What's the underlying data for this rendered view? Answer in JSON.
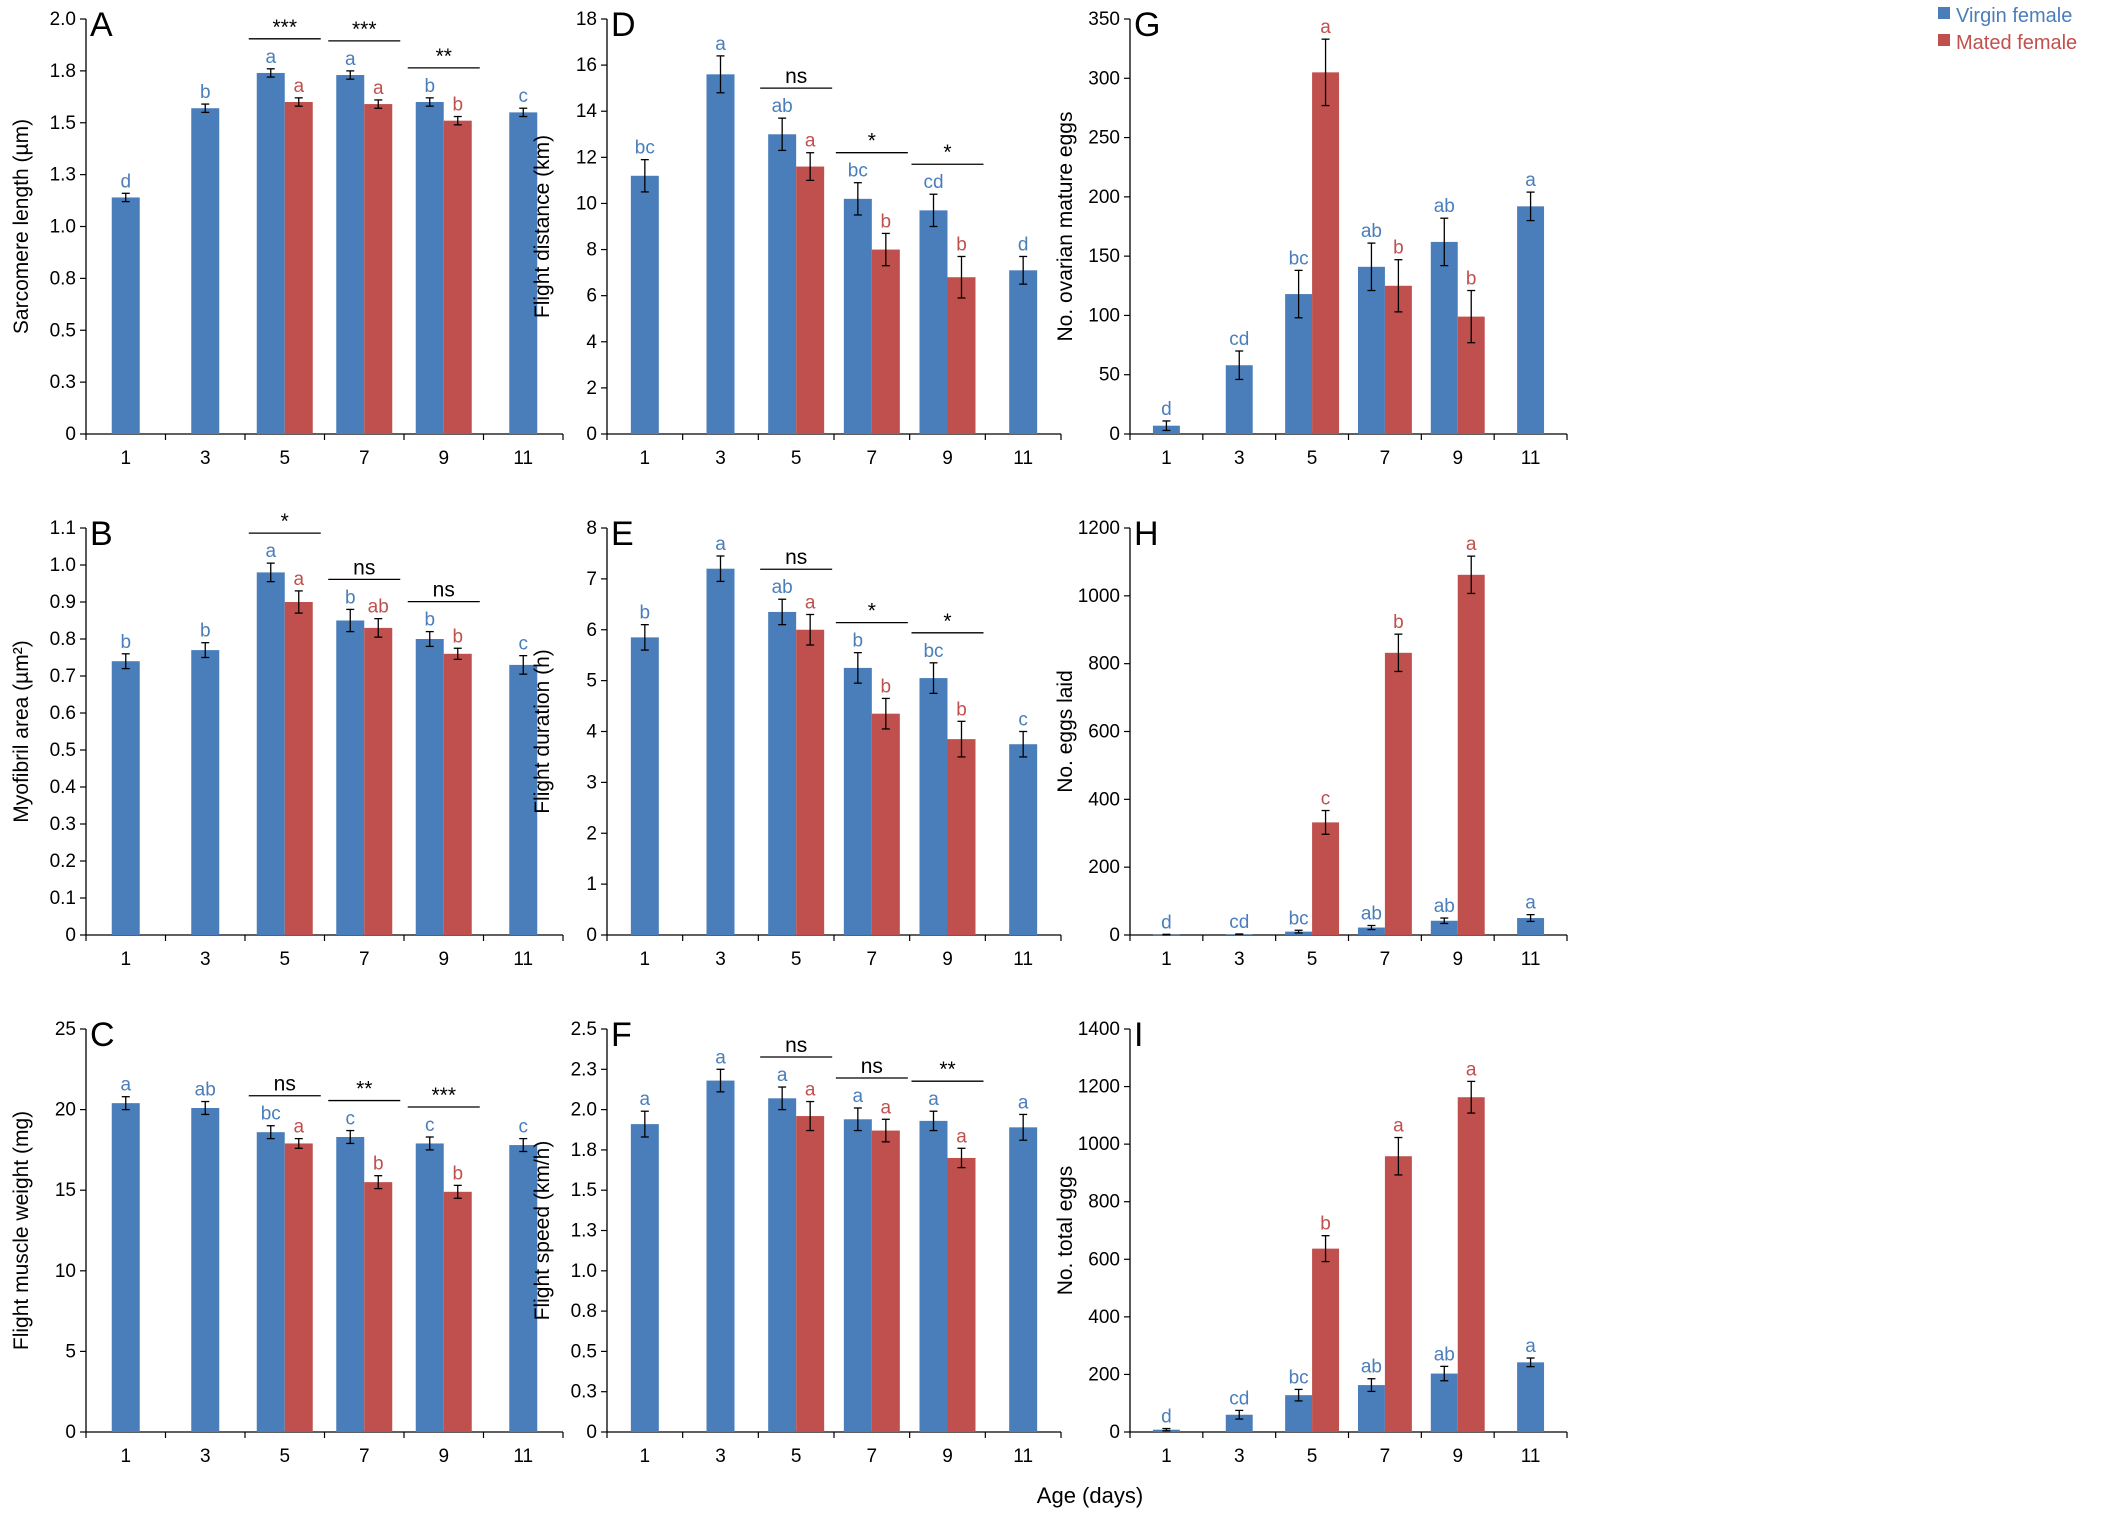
{
  "colors": {
    "virgin": "#4a7ebb",
    "mated": "#c0504d"
  },
  "legend": {
    "virgin": "Virgin female",
    "mated": "Mated female"
  },
  "x_title": "Age (days)",
  "chart_data": [
    {
      "panel": "A",
      "type": "bar",
      "ylabel": "Sarcomere length (µm)",
      "ylim": [
        0,
        2.0
      ],
      "yticks": [
        "0",
        "0.3",
        "0.5",
        "0.8",
        "1.0",
        "1.3",
        "1.5",
        "1.8",
        "2.0"
      ],
      "categories": [
        "1",
        "3",
        "5",
        "7",
        "9",
        "11"
      ],
      "series": [
        {
          "name": "Virgin female",
          "values": [
            1.14,
            1.57,
            1.74,
            1.73,
            1.6,
            1.55
          ],
          "errors": [
            0.02,
            0.02,
            0.02,
            0.02,
            0.02,
            0.02
          ],
          "letters": [
            "d",
            "b",
            "a",
            "a",
            "b",
            "c"
          ]
        },
        {
          "name": "Mated female",
          "values": [
            null,
            null,
            1.6,
            1.59,
            1.51,
            null
          ],
          "errors": [
            null,
            null,
            0.02,
            0.02,
            0.02,
            null
          ],
          "letters": [
            "",
            "",
            "a",
            "a",
            "b",
            ""
          ]
        }
      ],
      "significance": [
        "",
        "",
        "***",
        "***",
        "**",
        ""
      ]
    },
    {
      "panel": "B",
      "type": "bar",
      "ylabel": "Myofibril area (µm²)",
      "ylim": [
        0,
        1.1
      ],
      "yticks": [
        "0",
        "0.1",
        "0.2",
        "0.3",
        "0.4",
        "0.5",
        "0.6",
        "0.7",
        "0.8",
        "0.9",
        "1.0",
        "1.1"
      ],
      "categories": [
        "1",
        "3",
        "5",
        "7",
        "9",
        "11"
      ],
      "series": [
        {
          "name": "Virgin female",
          "values": [
            0.74,
            0.77,
            0.98,
            0.85,
            0.8,
            0.73
          ],
          "errors": [
            0.02,
            0.02,
            0.025,
            0.03,
            0.02,
            0.025
          ],
          "letters": [
            "b",
            "b",
            "a",
            "b",
            "b",
            "c"
          ]
        },
        {
          "name": "Mated female",
          "values": [
            null,
            null,
            0.9,
            0.83,
            0.76,
            null
          ],
          "errors": [
            null,
            null,
            0.03,
            0.025,
            0.015,
            null
          ],
          "letters": [
            "",
            "",
            "a",
            "ab",
            "b",
            ""
          ]
        }
      ],
      "significance": [
        "",
        "",
        "*",
        "ns",
        "ns",
        ""
      ]
    },
    {
      "panel": "C",
      "type": "bar",
      "ylabel": "Flight muscle weight (mg)",
      "ylim": [
        0,
        25
      ],
      "yticks": [
        "0",
        "5",
        "10",
        "15",
        "20",
        "25"
      ],
      "categories": [
        "1",
        "3",
        "5",
        "7",
        "9",
        "11"
      ],
      "series": [
        {
          "name": "Virgin female",
          "values": [
            20.4,
            20.1,
            18.6,
            18.3,
            17.9,
            17.8
          ],
          "errors": [
            0.4,
            0.4,
            0.4,
            0.4,
            0.4,
            0.4
          ],
          "letters": [
            "a",
            "ab",
            "bc",
            "c",
            "c",
            "c"
          ]
        },
        {
          "name": "Mated female",
          "values": [
            null,
            null,
            17.9,
            15.5,
            14.9,
            null
          ],
          "errors": [
            null,
            null,
            0.3,
            0.4,
            0.4,
            null
          ],
          "letters": [
            "",
            "",
            "a",
            "b",
            "b",
            ""
          ]
        }
      ],
      "significance": [
        "",
        "",
        "ns",
        "**",
        "***",
        ""
      ]
    },
    {
      "panel": "D",
      "type": "bar",
      "ylabel": "Flight distance (km)",
      "ylim": [
        0,
        18
      ],
      "yticks": [
        "0",
        "2",
        "4",
        "6",
        "8",
        "10",
        "12",
        "14",
        "16",
        "18"
      ],
      "categories": [
        "1",
        "3",
        "5",
        "7",
        "9",
        "11"
      ],
      "series": [
        {
          "name": "Virgin female",
          "values": [
            11.2,
            15.6,
            13.0,
            10.2,
            9.7,
            7.1
          ],
          "errors": [
            0.7,
            0.8,
            0.7,
            0.7,
            0.7,
            0.6
          ],
          "letters": [
            "bc",
            "a",
            "ab",
            "bc",
            "cd",
            "d"
          ]
        },
        {
          "name": "Mated female",
          "values": [
            null,
            null,
            11.6,
            8.0,
            6.8,
            null
          ],
          "errors": [
            null,
            null,
            0.6,
            0.7,
            0.9,
            null
          ],
          "letters": [
            "",
            "",
            "a",
            "b",
            "b",
            ""
          ]
        }
      ],
      "significance": [
        "",
        "",
        "ns",
        "*",
        "*",
        ""
      ]
    },
    {
      "panel": "E",
      "type": "bar",
      "ylabel": "Flight duration (h)",
      "ylim": [
        0,
        8
      ],
      "yticks": [
        "0",
        "1",
        "2",
        "3",
        "4",
        "5",
        "6",
        "7",
        "8"
      ],
      "categories": [
        "1",
        "3",
        "5",
        "7",
        "9",
        "11"
      ],
      "series": [
        {
          "name": "Virgin female",
          "values": [
            5.85,
            7.2,
            6.35,
            5.25,
            5.05,
            3.75
          ],
          "errors": [
            0.25,
            0.25,
            0.25,
            0.3,
            0.3,
            0.25
          ],
          "letters": [
            "b",
            "a",
            "ab",
            "b",
            "bc",
            "c"
          ]
        },
        {
          "name": "Mated female",
          "values": [
            null,
            null,
            6.0,
            4.35,
            3.85,
            null
          ],
          "errors": [
            null,
            null,
            0.3,
            0.3,
            0.35,
            null
          ],
          "letters": [
            "",
            "",
            "a",
            "b",
            "b",
            ""
          ]
        }
      ],
      "significance": [
        "",
        "",
        "ns",
        "*",
        "*",
        ""
      ]
    },
    {
      "panel": "F",
      "type": "bar",
      "ylabel": "Flight speed (km/h)",
      "ylim": [
        0,
        2.5
      ],
      "yticks": [
        "0",
        "0.3",
        "0.5",
        "0.8",
        "1.0",
        "1.3",
        "1.5",
        "1.8",
        "2.0",
        "2.3",
        "2.5"
      ],
      "categories": [
        "1",
        "3",
        "5",
        "7",
        "9",
        "11"
      ],
      "series": [
        {
          "name": "Virgin female",
          "values": [
            1.91,
            2.18,
            2.07,
            1.94,
            1.93,
            1.89
          ],
          "errors": [
            0.08,
            0.07,
            0.07,
            0.07,
            0.06,
            0.08
          ],
          "letters": [
            "a",
            "a",
            "a",
            "a",
            "a",
            "a"
          ]
        },
        {
          "name": "Mated female",
          "values": [
            null,
            null,
            1.96,
            1.87,
            1.7,
            null
          ],
          "errors": [
            null,
            null,
            0.09,
            0.07,
            0.06,
            null
          ],
          "letters": [
            "",
            "",
            "a",
            "a",
            "a",
            ""
          ]
        }
      ],
      "significance": [
        "",
        "",
        "ns",
        "ns",
        "**",
        ""
      ]
    },
    {
      "panel": "G",
      "type": "bar",
      "ylabel": "No. ovarian mature eggs",
      "ylim": [
        0,
        350
      ],
      "yticks": [
        "0",
        "50",
        "100",
        "150",
        "200",
        "250",
        "300",
        "350"
      ],
      "categories": [
        "1",
        "3",
        "5",
        "7",
        "9",
        "11"
      ],
      "series": [
        {
          "name": "Virgin female",
          "values": [
            7,
            58,
            118,
            141,
            162,
            192
          ],
          "errors": [
            4,
            12,
            20,
            20,
            20,
            12
          ],
          "letters": [
            "d",
            "cd",
            "bc",
            "ab",
            "ab",
            "a"
          ]
        },
        {
          "name": "Mated female",
          "values": [
            null,
            null,
            305,
            125,
            99,
            null
          ],
          "errors": [
            null,
            null,
            28,
            22,
            22,
            null
          ],
          "letters": [
            "",
            "",
            "a",
            "b",
            "b",
            ""
          ]
        }
      ],
      "significance": [
        "",
        "",
        "",
        "",
        "",
        ""
      ]
    },
    {
      "panel": "H",
      "type": "bar",
      "ylabel": "No. eggs laid",
      "ylim": [
        0,
        1200
      ],
      "yticks": [
        "0",
        "200",
        "400",
        "600",
        "800",
        "1000",
        "1200"
      ],
      "categories": [
        "1",
        "3",
        "5",
        "7",
        "9",
        "11"
      ],
      "series": [
        {
          "name": "Virgin female",
          "values": [
            1,
            2,
            10,
            22,
            42,
            50
          ],
          "errors": [
            1,
            1,
            4,
            6,
            8,
            10
          ],
          "letters": [
            "d",
            "cd",
            "bc",
            "ab",
            "ab",
            "a"
          ]
        },
        {
          "name": "Mated female",
          "values": [
            null,
            null,
            332,
            832,
            1062,
            null
          ],
          "errors": [
            null,
            null,
            35,
            55,
            55,
            null
          ],
          "letters": [
            "",
            "",
            "c",
            "b",
            "a",
            ""
          ]
        }
      ],
      "significance": [
        "",
        "",
        "",
        "",
        "",
        ""
      ]
    },
    {
      "panel": "I",
      "type": "bar",
      "ylabel": "No. total eggs",
      "ylim": [
        0,
        1400
      ],
      "yticks": [
        "0",
        "200",
        "400",
        "600",
        "800",
        "1000",
        "1200",
        "1400"
      ],
      "categories": [
        "1",
        "3",
        "5",
        "7",
        "9",
        "11"
      ],
      "series": [
        {
          "name": "Virgin female",
          "values": [
            8,
            60,
            128,
            163,
            203,
            242
          ],
          "errors": [
            4,
            15,
            20,
            22,
            25,
            15
          ],
          "letters": [
            "d",
            "cd",
            "bc",
            "ab",
            "ab",
            "a"
          ]
        },
        {
          "name": "Mated female",
          "values": [
            null,
            null,
            637,
            958,
            1163,
            null
          ],
          "errors": [
            null,
            null,
            45,
            65,
            55,
            null
          ],
          "letters": [
            "",
            "",
            "b",
            "a",
            "a",
            ""
          ]
        }
      ],
      "significance": [
        "",
        "",
        "",
        "",
        "",
        ""
      ]
    }
  ]
}
